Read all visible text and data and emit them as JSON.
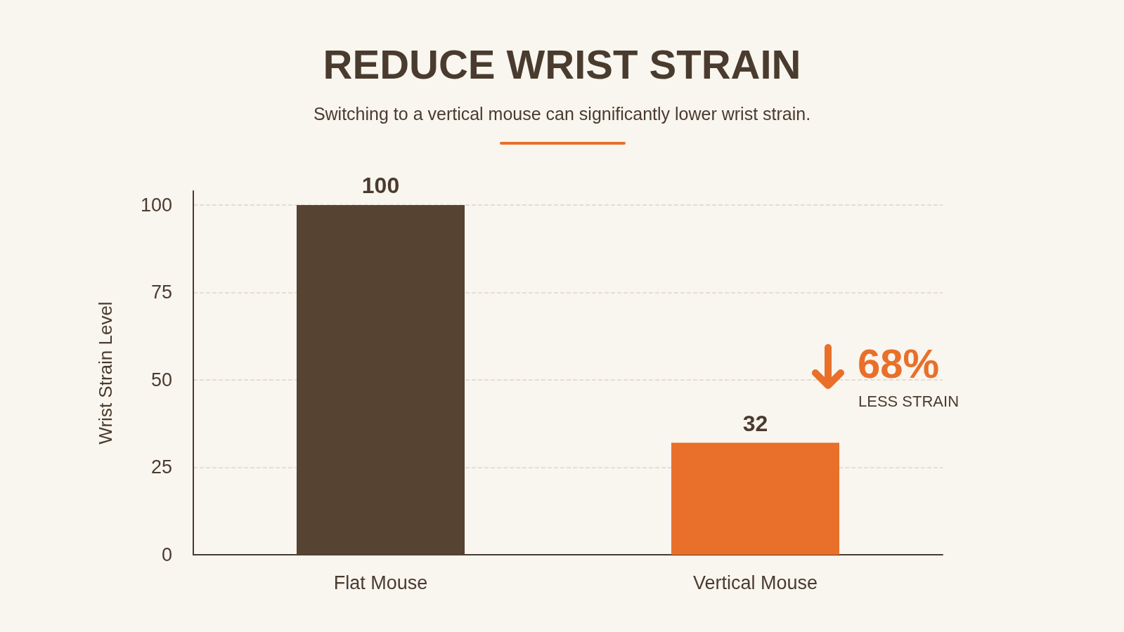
{
  "chart_data": {
    "type": "bar",
    "title": "REDUCE WRIST STRAIN",
    "subtitle": "Switching to a vertical mouse can significantly lower wrist strain.",
    "ylabel": "Wrist Strain Level",
    "categories": [
      "Flat Mouse",
      "Vertical Mouse"
    ],
    "values": [
      100,
      32
    ],
    "colors": [
      "#574331",
      "#e8702a"
    ],
    "ylim": [
      0,
      104
    ],
    "yticks": [
      0,
      25,
      50,
      75,
      100
    ],
    "grid": "y",
    "data_labels": true,
    "annotations": [
      "68%",
      "LESS STRAIN"
    ]
  }
}
